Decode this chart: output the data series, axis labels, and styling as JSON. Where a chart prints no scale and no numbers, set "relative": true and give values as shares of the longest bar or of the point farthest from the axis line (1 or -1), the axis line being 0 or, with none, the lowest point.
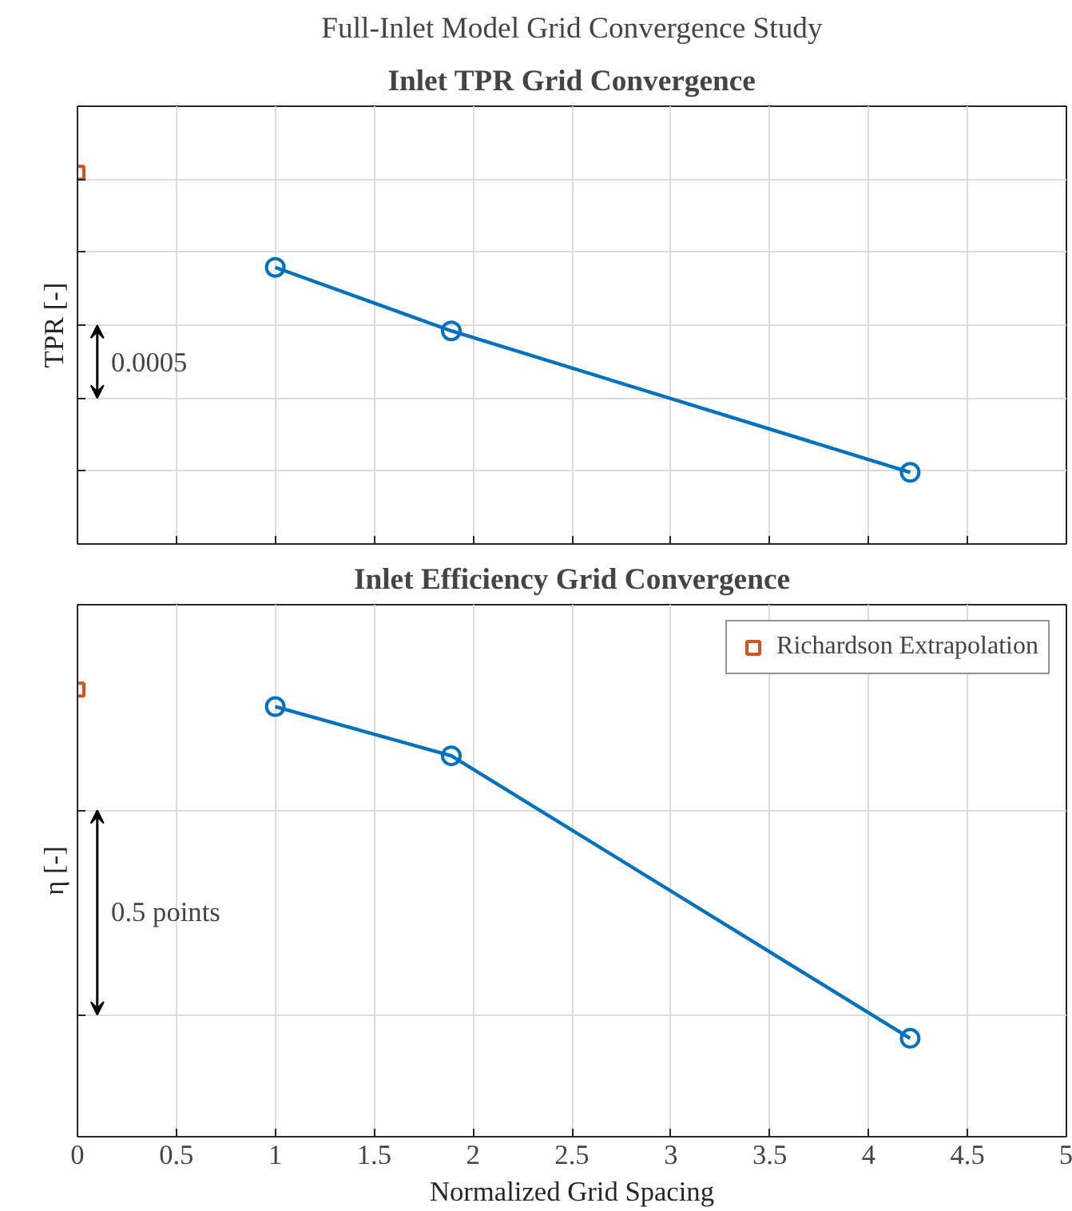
{
  "chart_data": [
    {
      "type": "line",
      "title": "Full-Inlet Model Grid Convergence Study",
      "subtitle": "Inlet TPR Grid Convergence",
      "ylabel": "TPR [-]",
      "relative": true,
      "xlim": [
        0,
        5
      ],
      "xticks": [
        0,
        0.5,
        1,
        1.5,
        2,
        2.5,
        3,
        3.5,
        4,
        4.5,
        5
      ],
      "tick_labels": false,
      "grid": true,
      "legend": false,
      "annotations": [
        "0.0005"
      ],
      "series": [
        {
          "color": "#0072bd",
          "marker": "circle",
          "x": [
            1,
            1.89,
            4.21
          ],
          "values": [
            0.745,
            0.574,
            0.193
          ]
        },
        {
          "type": "scatter",
          "color": "#d95319",
          "marker": "square",
          "x": [
            0
          ],
          "values": [
            1
          ]
        }
      ]
    },
    {
      "type": "line",
      "subtitle": "Inlet Efficiency Grid Convergence",
      "ylabel": "η [-]",
      "xlabel": "Normalized Grid Spacing",
      "relative": true,
      "xlim": [
        0,
        5
      ],
      "xticks": [
        0,
        0.5,
        1,
        1.5,
        2,
        2.5,
        3,
        3.5,
        4,
        4.5,
        5
      ],
      "tick_labels": "x",
      "grid": true,
      "legend": "top right",
      "annotations": [
        "0.5 points"
      ],
      "series": [
        {
          "color": "#0072bd",
          "marker": "circle",
          "x": [
            1,
            1.89,
            4.21
          ],
          "values": [
            0.962,
            0.852,
            0.22
          ]
        },
        {
          "type": "scatter",
          "name": "Richardson Extrapolation",
          "color": "#d95319",
          "marker": "square",
          "x": [
            0
          ],
          "values": [
            1
          ]
        }
      ]
    }
  ]
}
